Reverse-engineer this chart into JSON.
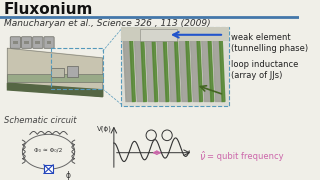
{
  "title": "Fluxonium",
  "reference": "Manucharyan et al., Science 326 , 113 (2009)",
  "schematic_label": "Schematic circuit",
  "label_weak": "weak element\n(tunnelling phase)",
  "label_loop": "loop inductance\n(array of JJs)",
  "label_qubit": "= qubit frequency",
  "label_V": "V(ϕ)",
  "phi_label": "Φ₀ ≈ Φ₀/2",
  "phi_sym": "ϕ",
  "nu_sym": "ν̂",
  "bg_color": "#f0efe8",
  "title_color": "#111111",
  "ref_color": "#333333",
  "blue_line_color": "#5599bb",
  "header_line_color": "#4477aa",
  "arrow_blue": "#2255cc",
  "arrow_green": "#446622",
  "green_color": "#558833",
  "pink_color": "#cc66aa",
  "dark_gray": "#555555",
  "title_fontsize": 11,
  "ref_fontsize": 6.5,
  "small_fontsize": 6.0,
  "tiny_fontsize": 5.0
}
